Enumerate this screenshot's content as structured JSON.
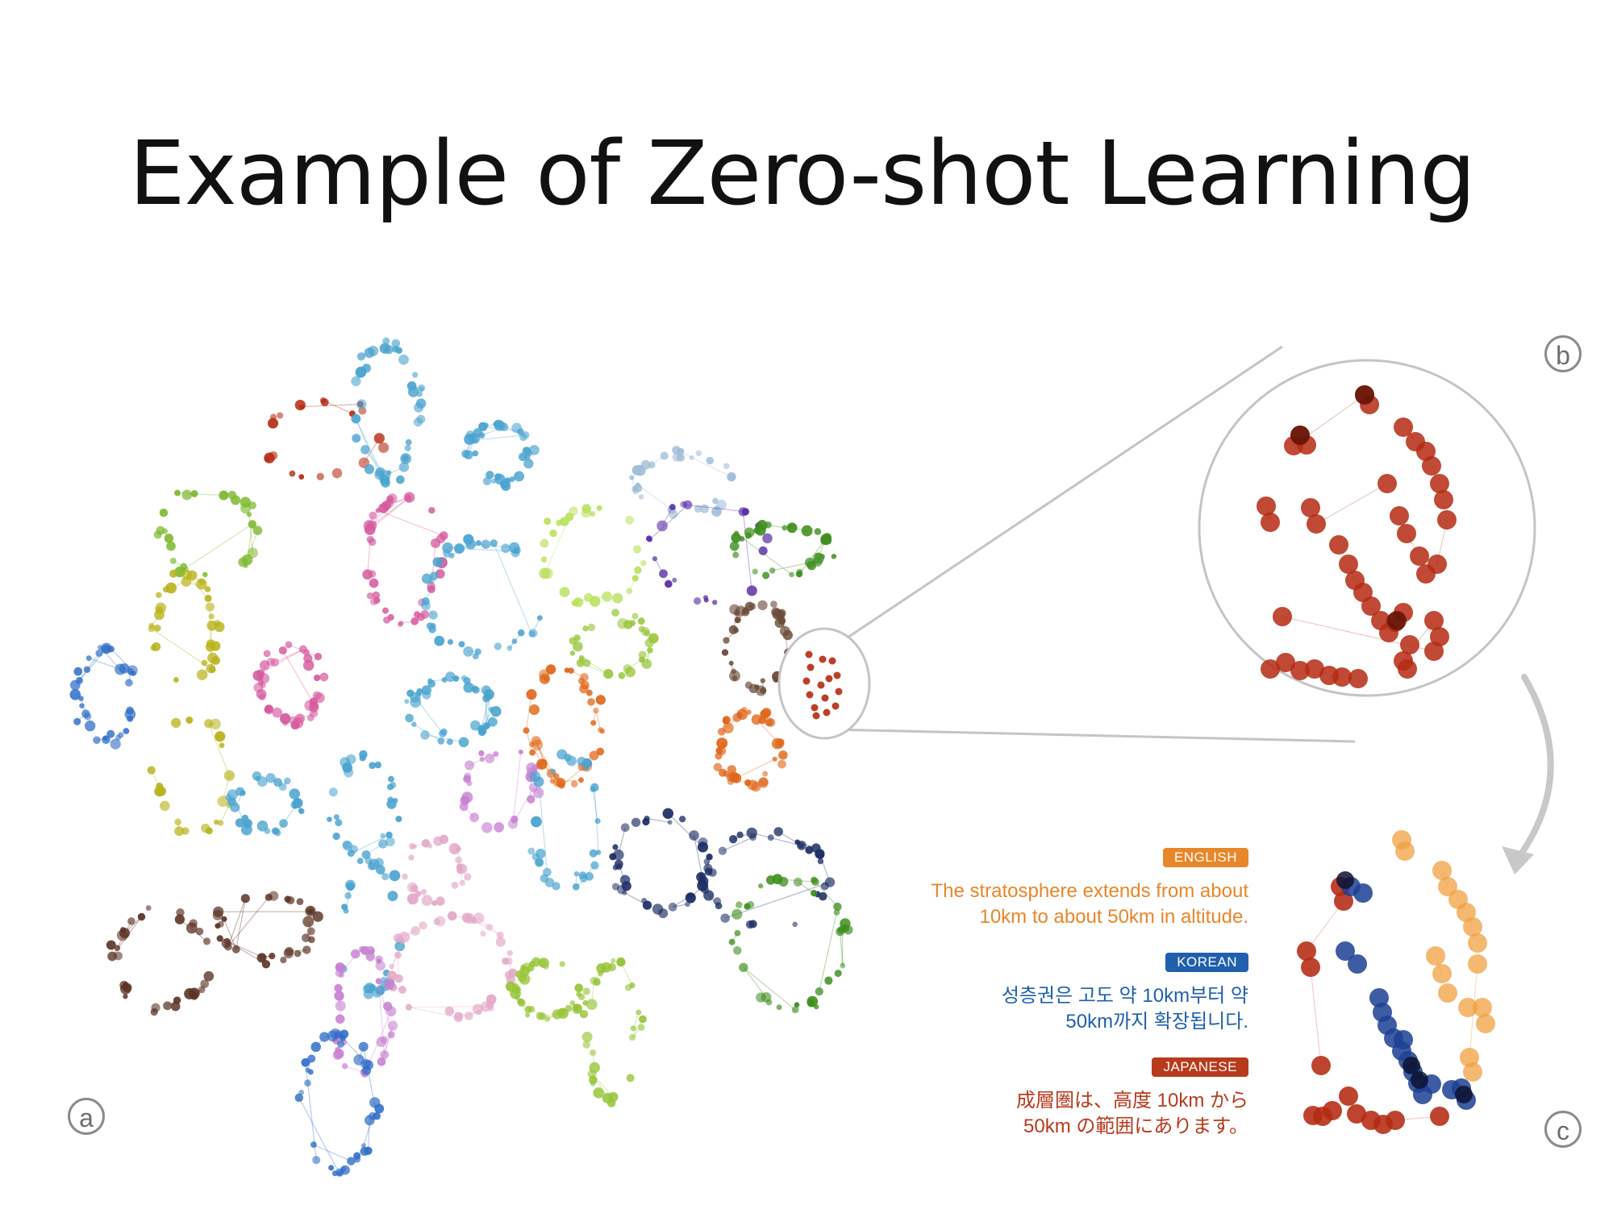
{
  "slide": {
    "title": "Example of Zero-shot Learning"
  },
  "panels": {
    "a": "a",
    "b": "b",
    "c": "c"
  },
  "languages": [
    {
      "id": "english",
      "badge": "ENGLISH",
      "color": "#e8862a",
      "lines": [
        "The stratosphere extends from about",
        "10km to about 50km in altitude."
      ]
    },
    {
      "id": "korean",
      "badge": "KOREAN",
      "color": "#1f5fae",
      "lines": [
        "성층권은 고도 약 10km부터 약",
        "50km까지 확장됩니다."
      ]
    },
    {
      "id": "japanese",
      "badge": "JAPANESE",
      "color": "#b83a1d",
      "lines": [
        "成層圏は、高度 10km から",
        "50km の範囲にあります。"
      ]
    }
  ],
  "colors": {
    "cluster_red": "#b52a12",
    "cluster_orange": "#f0a040",
    "cluster_blue": "#1c3f94",
    "connector": "#bdbdbd"
  },
  "icons": {
    "zoom_connector": "zoom-lens",
    "curved_arrow": "curved-arrow-down"
  }
}
